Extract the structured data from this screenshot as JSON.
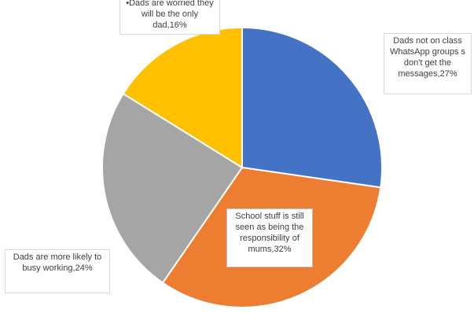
{
  "chart_data": {
    "type": "pie",
    "title": "",
    "slices": [
      {
        "label": "Dads not on class WhatsApp groups s don't get the messages,27%",
        "category": "Dads not on class WhatsApp groups s don't get the messages",
        "value": 27,
        "color": "#4472C4"
      },
      {
        "label": "School stuff is still seen as being the responsibility of mums,32%",
        "category": "School stuff is still seen as being the responsibility of mums",
        "value": 32,
        "color": "#ED7D31"
      },
      {
        "label": "Dads are more likely to busy working,24%",
        "category": "Dads are more likely to busy working",
        "value": 24,
        "color": "#A5A5A5"
      },
      {
        "label": "•Dads are worried they will be the only dad,16%",
        "category": "•Dads are worried they will be the only dad",
        "value": 16,
        "color": "#FFC000"
      }
    ],
    "legend": "none",
    "start_angle": "12 o'clock, clockwise"
  }
}
